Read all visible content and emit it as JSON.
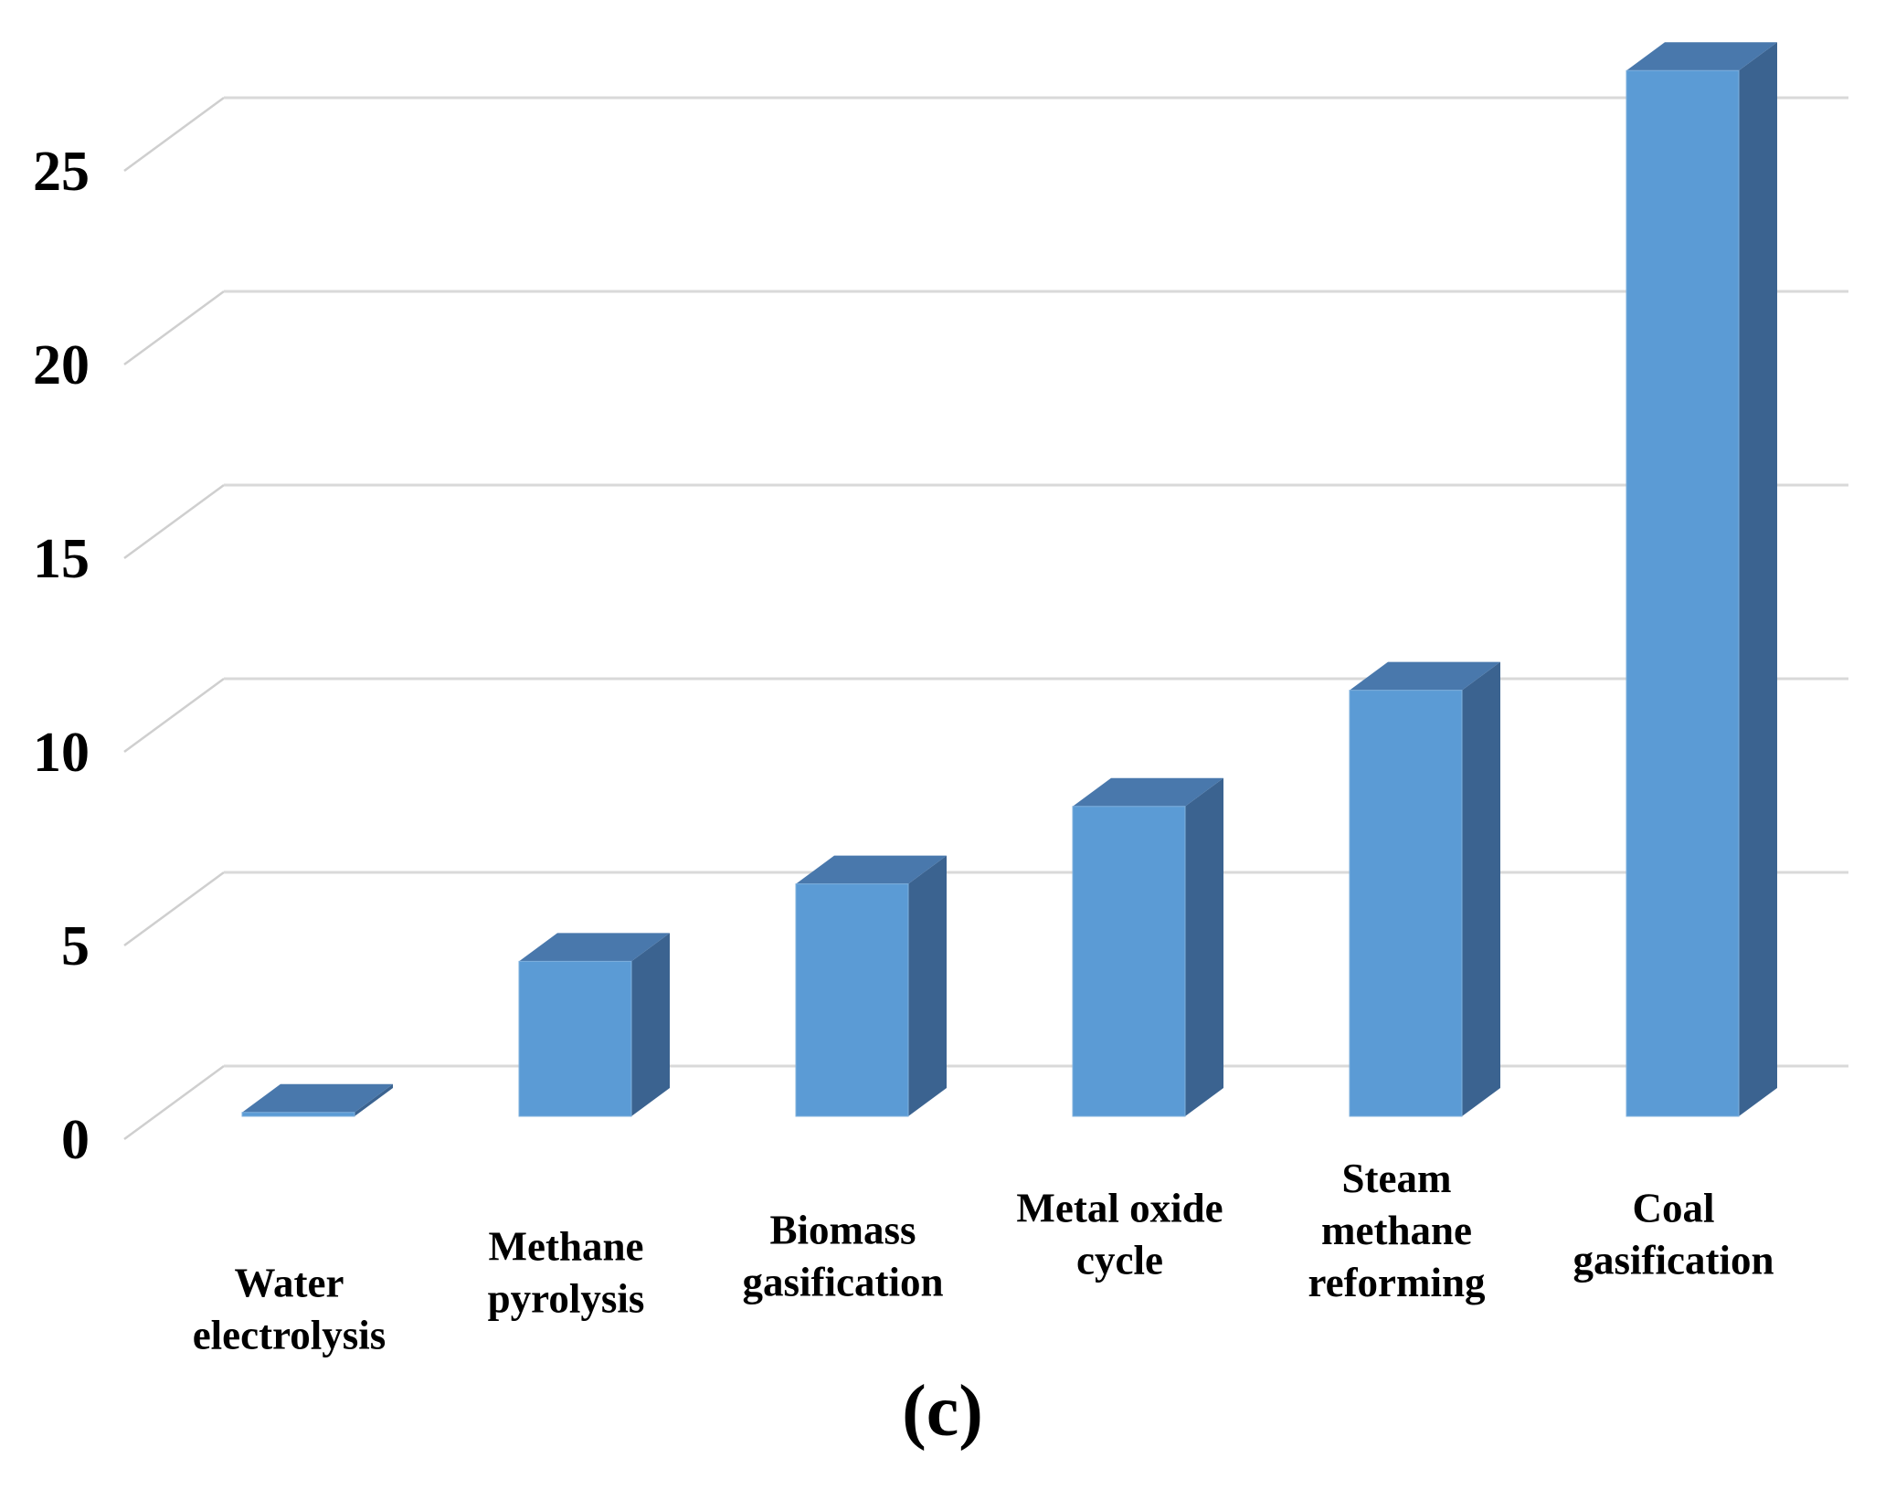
{
  "caption": "(c)",
  "chart_data": {
    "type": "bar",
    "projection": "3d-column",
    "title": "",
    "xlabel": "",
    "ylabel": "",
    "categories": [
      "Water electrolysis",
      "Methane pyrolysis",
      "Biomass gasification",
      "Metal oxide cycle",
      "Steam methane reforming",
      "Coal gasification"
    ],
    "category_label_lines": [
      [
        "Water",
        "electrolysis"
      ],
      [
        "Methane",
        "pyrolysis"
      ],
      [
        "Biomass",
        "gasification"
      ],
      [
        "Metal oxide",
        "cycle"
      ],
      [
        "Steam",
        "methane",
        "reforming"
      ],
      [
        "Coal",
        "gasification"
      ]
    ],
    "values": [
      0.1,
      4,
      6,
      8,
      11,
      27
    ],
    "y_ticks": [
      0,
      5,
      10,
      15,
      20,
      25
    ],
    "ylim": [
      0,
      27.5
    ],
    "grid": true,
    "legend": false,
    "colors": {
      "bar_front": "#5B9BD5",
      "bar_top": "#4978AC",
      "bar_side": "#3B6390",
      "bar_edge": "#7FB0DD",
      "gridline": "#D9D9D9",
      "tick_diagonal": "#CFCFCF",
      "text": "#000000",
      "background": "#FFFFFF"
    }
  }
}
